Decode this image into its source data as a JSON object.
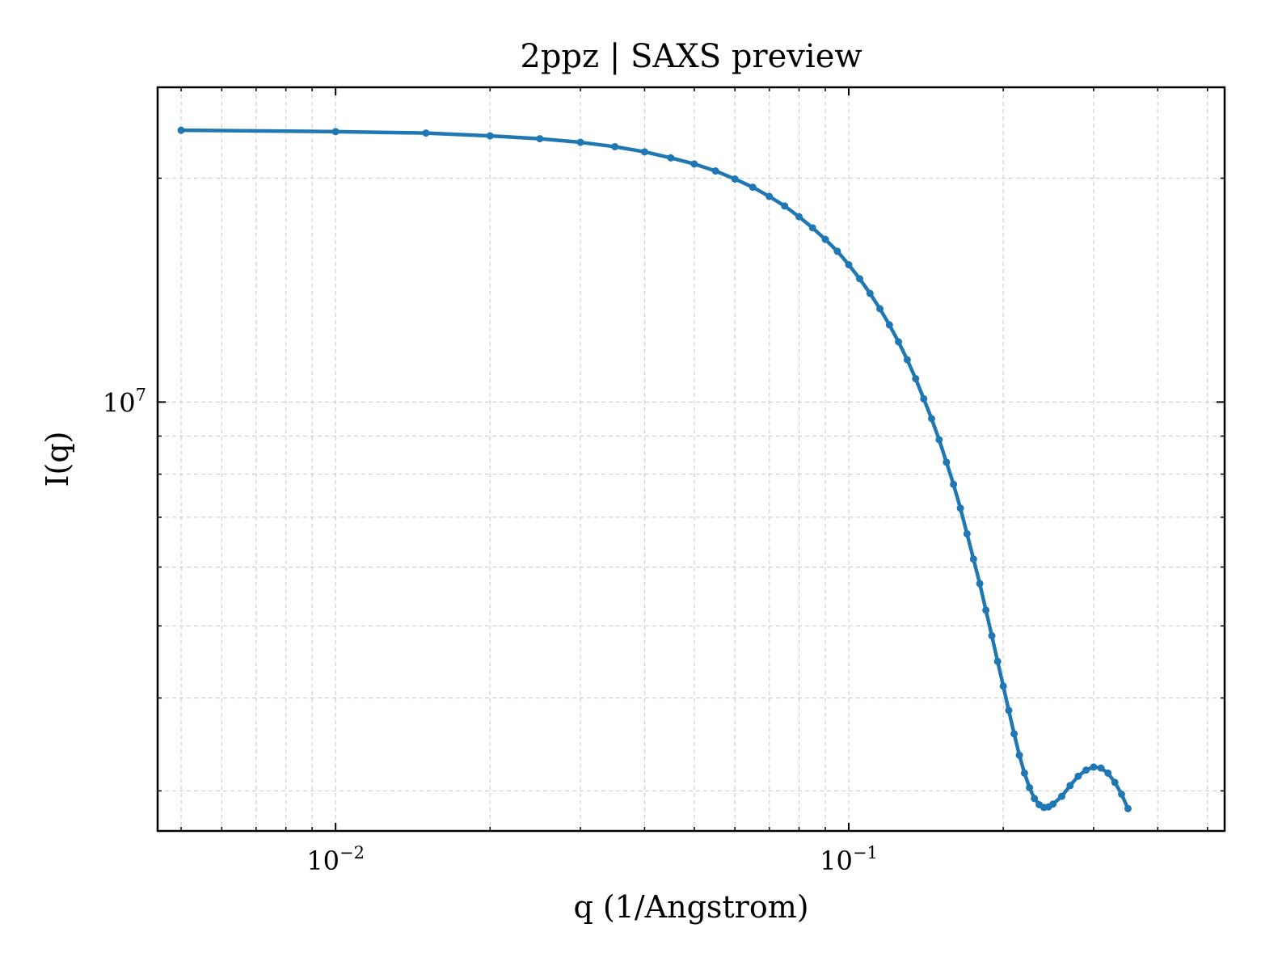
{
  "chart_data": {
    "type": "line",
    "title": "2ppz | SAXS preview",
    "xlabel": "q (1/Angstrom)",
    "ylabel": "I(q)",
    "xscale": "log",
    "yscale": "log",
    "xlim": [
      0.0045,
      0.54
    ],
    "ylim": [
      2650000,
      26500000
    ],
    "grid": true,
    "legend": "none",
    "line_color": "#1f77b4",
    "x_ticks": [
      {
        "value": 0.01,
        "base": "10",
        "exp": "−2"
      },
      {
        "value": 0.1,
        "base": "10",
        "exp": "−1"
      }
    ],
    "y_ticks": [
      {
        "value": 10000000,
        "base": "10",
        "exp": "7"
      }
    ],
    "series": [
      {
        "points": [
          [
            0.005,
            23200000
          ],
          [
            0.01,
            23100000
          ],
          [
            0.015,
            23000000
          ],
          [
            0.02,
            22800000
          ],
          [
            0.025,
            22600000
          ],
          [
            0.03,
            22350000
          ],
          [
            0.035,
            22050000
          ],
          [
            0.04,
            21700000
          ],
          [
            0.045,
            21300000
          ],
          [
            0.05,
            20900000
          ],
          [
            0.055,
            20450000
          ],
          [
            0.06,
            19950000
          ],
          [
            0.065,
            19450000
          ],
          [
            0.07,
            18900000
          ],
          [
            0.075,
            18350000
          ],
          [
            0.08,
            17750000
          ],
          [
            0.085,
            17150000
          ],
          [
            0.09,
            16550000
          ],
          [
            0.095,
            15950000
          ],
          [
            0.1,
            15300000
          ],
          [
            0.105,
            14650000
          ],
          [
            0.11,
            14000000
          ],
          [
            0.115,
            13350000
          ],
          [
            0.12,
            12700000
          ],
          [
            0.125,
            12050000
          ],
          [
            0.13,
            11400000
          ],
          [
            0.135,
            10750000
          ],
          [
            0.14,
            10100000
          ],
          [
            0.145,
            9500000
          ],
          [
            0.15,
            8900000
          ],
          [
            0.155,
            8300000
          ],
          [
            0.16,
            7750000
          ],
          [
            0.165,
            7200000
          ],
          [
            0.17,
            6650000
          ],
          [
            0.175,
            6150000
          ],
          [
            0.18,
            5700000
          ],
          [
            0.185,
            5250000
          ],
          [
            0.19,
            4850000
          ],
          [
            0.195,
            4480000
          ],
          [
            0.2,
            4150000
          ],
          [
            0.205,
            3850000
          ],
          [
            0.21,
            3580000
          ],
          [
            0.215,
            3350000
          ],
          [
            0.22,
            3170000
          ],
          [
            0.225,
            3030000
          ],
          [
            0.23,
            2930000
          ],
          [
            0.235,
            2875000
          ],
          [
            0.24,
            2850000
          ],
          [
            0.245,
            2855000
          ],
          [
            0.25,
            2880000
          ],
          [
            0.26,
            2950000
          ],
          [
            0.27,
            3050000
          ],
          [
            0.28,
            3140000
          ],
          [
            0.29,
            3200000
          ],
          [
            0.3,
            3230000
          ],
          [
            0.31,
            3220000
          ],
          [
            0.32,
            3170000
          ],
          [
            0.33,
            3080000
          ],
          [
            0.34,
            2970000
          ],
          [
            0.35,
            2840000
          ]
        ]
      }
    ]
  }
}
